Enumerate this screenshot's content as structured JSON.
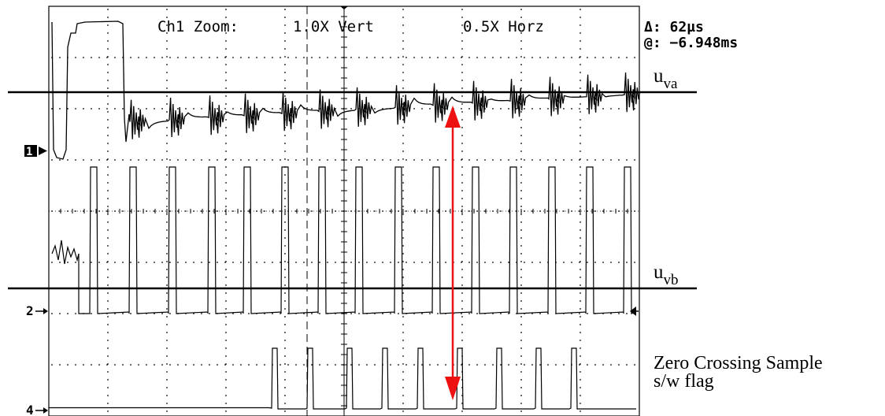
{
  "header": {
    "zoom_label": "Ch1 Zoom:",
    "vert_label": "1.0X Vert",
    "horz_label": "0.5X Horz"
  },
  "readout": {
    "delta_label": "Δ: 62µs",
    "at_label": "@: −6.948ms"
  },
  "channels": {
    "ch1_marker": "1",
    "ch2_marker": "2",
    "ch4_marker": "4"
  },
  "labels": {
    "uva_main": "u",
    "uva_sub": "va",
    "uvb_main": "u",
    "uvb_sub": "vb",
    "zc_line1": "Zero Crossing Sample",
    "zc_line2": "s/w flag"
  },
  "colors": {
    "trace": "#000000",
    "arrow": "#ee1111",
    "grid": "#000000",
    "background": "#ffffff"
  },
  "chart_data": {
    "type": "line",
    "display": "oscilloscope",
    "grid": true,
    "grid_divisions": {
      "horizontal": 10,
      "vertical": 8
    },
    "cursor": {
      "delta": "62µs",
      "at": "-6.948ms"
    },
    "traces": [
      {
        "channel": 1,
        "signal": "uva",
        "shape": "initial pulse then switching ringing around reference line"
      },
      {
        "channel": 2,
        "signal": "uvb",
        "shape": "PWM square pulses",
        "pulse_count": 15
      },
      {
        "channel": 4,
        "signal": "zero crossing sample s/w flag",
        "shape": "narrow flag pulses",
        "pulse_count": 9
      }
    ]
  }
}
